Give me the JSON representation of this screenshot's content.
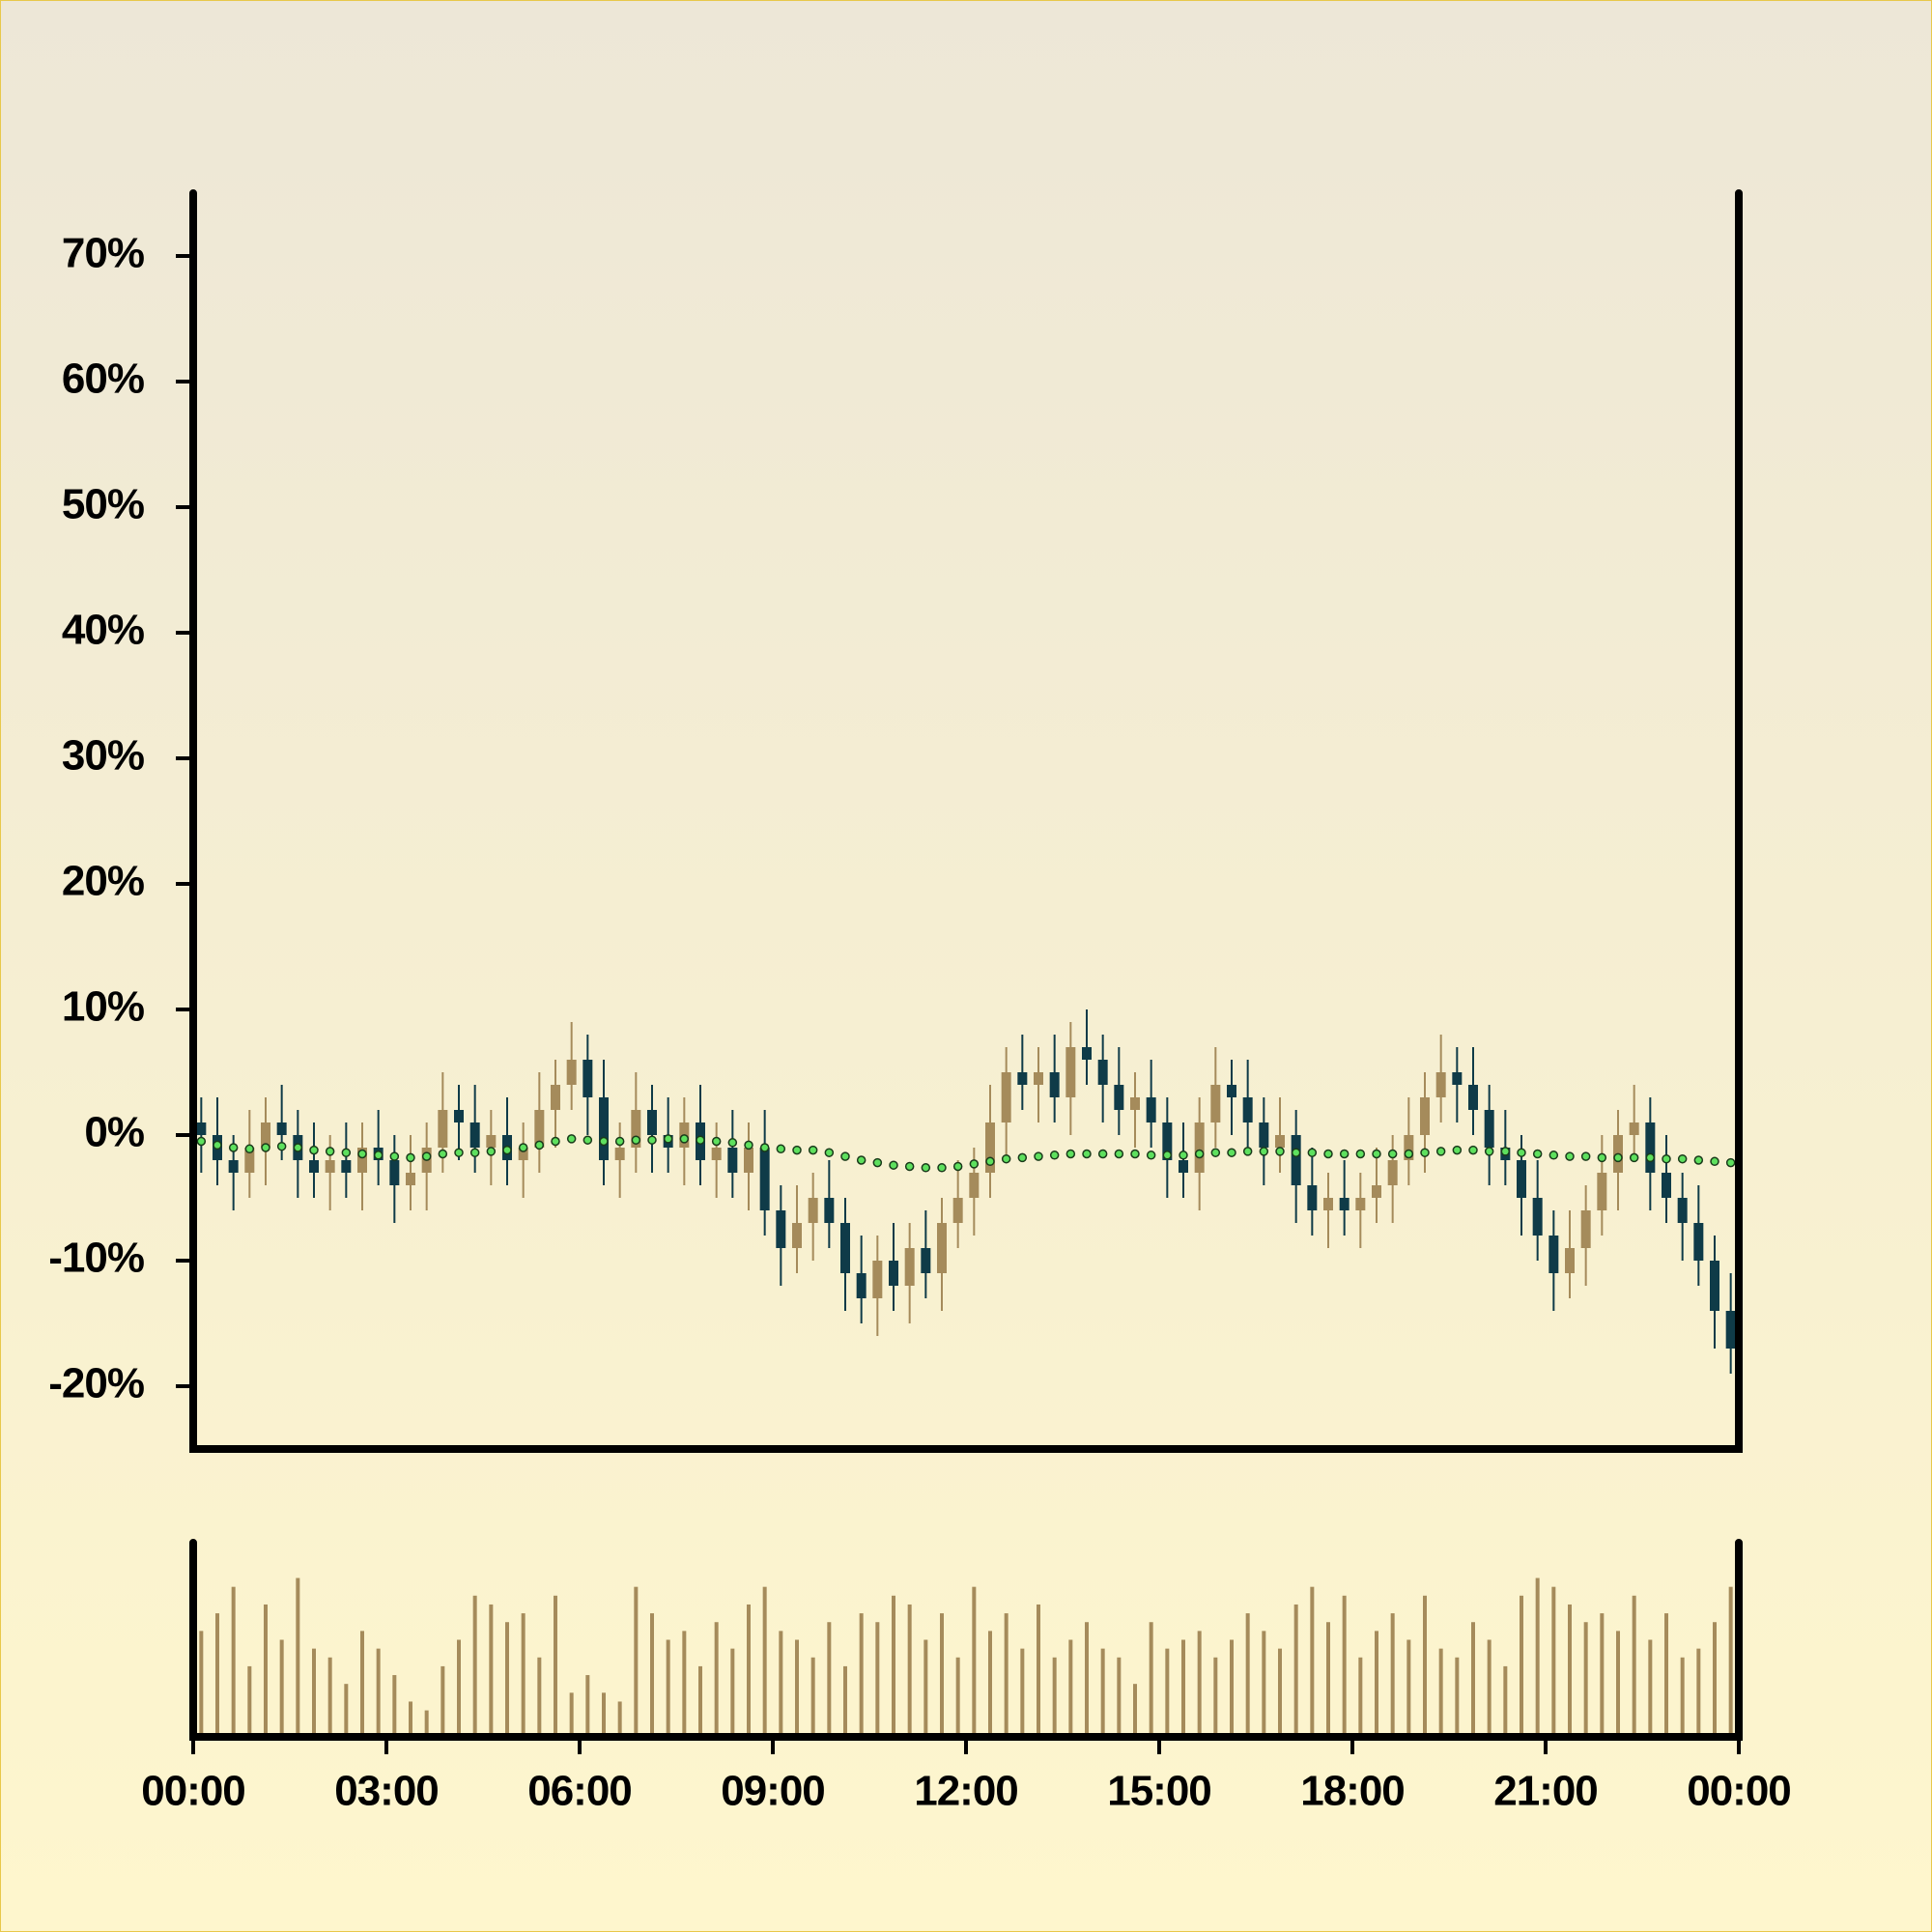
{
  "chart_data": {
    "type": "candlestick",
    "xlim": [
      0,
      1440
    ],
    "xticks": [
      {
        "value": 0,
        "label": "00:00"
      },
      {
        "value": 180,
        "label": "03:00"
      },
      {
        "value": 360,
        "label": "06:00"
      },
      {
        "value": 540,
        "label": "09:00"
      },
      {
        "value": 720,
        "label": "12:00"
      },
      {
        "value": 900,
        "label": "15:00"
      },
      {
        "value": 1080,
        "label": "18:00"
      },
      {
        "value": 1260,
        "label": "21:00"
      },
      {
        "value": 1440,
        "label": "00:00"
      }
    ],
    "ylim": [
      -25,
      75
    ],
    "yticks": [
      {
        "value": -20,
        "label": "-20%"
      },
      {
        "value": -10,
        "label": "-10%"
      },
      {
        "value": 0,
        "label": "0%"
      },
      {
        "value": 10,
        "label": "10%"
      },
      {
        "value": 20,
        "label": "20%"
      },
      {
        "value": 30,
        "label": "30%"
      },
      {
        "value": 40,
        "label": "40%"
      },
      {
        "value": 50,
        "label": "50%"
      },
      {
        "value": 60,
        "label": "60%"
      },
      {
        "value": 70,
        "label": "70%"
      }
    ],
    "up_color": "#a58b5b",
    "down_color": "#0f3b48",
    "x": [
      0,
      15,
      30,
      45,
      60,
      75,
      90,
      105,
      120,
      135,
      150,
      165,
      180,
      195,
      210,
      225,
      240,
      255,
      270,
      285,
      300,
      315,
      330,
      345,
      360,
      375,
      390,
      405,
      420,
      435,
      450,
      465,
      480,
      495,
      510,
      525,
      540,
      555,
      570,
      585,
      600,
      615,
      630,
      645,
      660,
      675,
      690,
      705,
      720,
      735,
      750,
      765,
      780,
      795,
      810,
      825,
      840,
      855,
      870,
      885,
      900,
      915,
      930,
      945,
      960,
      975,
      990,
      1005,
      1020,
      1035,
      1050,
      1065,
      1080,
      1095,
      1110,
      1125,
      1140,
      1155,
      1170,
      1185,
      1200,
      1215,
      1230,
      1245,
      1260,
      1275,
      1290,
      1305,
      1320,
      1335,
      1350,
      1365,
      1380,
      1395,
      1410,
      1425
    ],
    "open": [
      1,
      0,
      -2,
      -3,
      -1,
      1,
      0,
      -2,
      -3,
      -2,
      -3,
      -1,
      -2,
      -4,
      -3,
      -1,
      2,
      1,
      -1,
      0,
      -2,
      -1,
      2,
      4,
      6,
      3,
      -2,
      -1,
      2,
      0,
      -1,
      1,
      -2,
      -1,
      -3,
      -1,
      -6,
      -9,
      -7,
      -5,
      -7,
      -11,
      -13,
      -10,
      -12,
      -9,
      -11,
      -7,
      -5,
      -3,
      1,
      5,
      4,
      5,
      3,
      7,
      6,
      4,
      2,
      3,
      1,
      -2,
      -3,
      1,
      4,
      3,
      1,
      -1,
      0,
      -4,
      -6,
      -5,
      -6,
      -5,
      -4,
      -2,
      0,
      3,
      5,
      4,
      2,
      -1,
      -2,
      -5,
      -8,
      -11,
      -9,
      -6,
      -3,
      0,
      1,
      -3,
      -5,
      -7,
      -10,
      -14
    ],
    "high": [
      3,
      3,
      0,
      2,
      3,
      4,
      2,
      1,
      0,
      1,
      1,
      2,
      0,
      0,
      1,
      5,
      4,
      4,
      2,
      3,
      1,
      5,
      6,
      9,
      8,
      6,
      1,
      5,
      4,
      3,
      3,
      4,
      1,
      2,
      1,
      2,
      -4,
      -4,
      -3,
      -2,
      -5,
      -8,
      -8,
      -7,
      -7,
      -6,
      -5,
      -2,
      -1,
      4,
      7,
      8,
      7,
      8,
      9,
      10,
      8,
      7,
      5,
      6,
      3,
      1,
      3,
      7,
      6,
      6,
      3,
      3,
      2,
      -1,
      -3,
      -2,
      -3,
      -1,
      0,
      3,
      5,
      8,
      7,
      7,
      4,
      2,
      0,
      -2,
      -6,
      -6,
      -4,
      0,
      2,
      4,
      3,
      0,
      -3,
      -4,
      -8,
      -11
    ],
    "low": [
      -3,
      -4,
      -6,
      -5,
      -4,
      -2,
      -5,
      -5,
      -6,
      -5,
      -6,
      -4,
      -7,
      -6,
      -6,
      -3,
      -2,
      -3,
      -4,
      -4,
      -5,
      -3,
      -1,
      2,
      0,
      -4,
      -5,
      -3,
      -3,
      -3,
      -4,
      -4,
      -5,
      -5,
      -6,
      -8,
      -12,
      -11,
      -10,
      -9,
      -14,
      -15,
      -16,
      -14,
      -15,
      -13,
      -14,
      -9,
      -8,
      -5,
      -2,
      2,
      1,
      1,
      0,
      4,
      1,
      0,
      -1,
      -1,
      -5,
      -5,
      -6,
      -1,
      0,
      -1,
      -4,
      -3,
      -7,
      -8,
      -9,
      -8,
      -9,
      -7,
      -7,
      -4,
      -3,
      1,
      1,
      0,
      -4,
      -4,
      -8,
      -10,
      -14,
      -13,
      -12,
      -8,
      -6,
      -2,
      -6,
      -7,
      -10,
      -12,
      -17,
      -19
    ],
    "close": [
      0,
      -2,
      -3,
      -1,
      1,
      0,
      -2,
      -3,
      -2,
      -3,
      -1,
      -2,
      -4,
      -3,
      -1,
      2,
      1,
      -1,
      0,
      -2,
      -1,
      2,
      4,
      6,
      3,
      -2,
      -1,
      2,
      0,
      -1,
      1,
      -2,
      -1,
      -3,
      -1,
      -6,
      -9,
      -7,
      -5,
      -7,
      -11,
      -13,
      -10,
      -12,
      -9,
      -11,
      -7,
      -5,
      -3,
      1,
      5,
      4,
      5,
      3,
      7,
      6,
      4,
      2,
      3,
      1,
      -2,
      -3,
      1,
      4,
      3,
      1,
      -1,
      0,
      -4,
      -6,
      -5,
      -6,
      -5,
      -4,
      -2,
      0,
      3,
      5,
      4,
      2,
      -1,
      -2,
      -5,
      -8,
      -11,
      -9,
      -6,
      -3,
      0,
      1,
      -3,
      -5,
      -7,
      -10,
      -14,
      -17
    ],
    "ma": {
      "color": "#5ee05e",
      "values": [
        -0.5,
        -0.8,
        -1,
        -1.1,
        -1,
        -0.9,
        -1,
        -1.2,
        -1.3,
        -1.4,
        -1.5,
        -1.6,
        -1.7,
        -1.8,
        -1.7,
        -1.5,
        -1.4,
        -1.4,
        -1.3,
        -1.2,
        -1,
        -0.8,
        -0.5,
        -0.3,
        -0.4,
        -0.5,
        -0.5,
        -0.4,
        -0.4,
        -0.3,
        -0.3,
        -0.4,
        -0.5,
        -0.6,
        -0.8,
        -1,
        -1.1,
        -1.2,
        -1.2,
        -1.4,
        -1.7,
        -2,
        -2.2,
        -2.4,
        -2.5,
        -2.6,
        -2.6,
        -2.5,
        -2.3,
        -2.1,
        -1.9,
        -1.8,
        -1.7,
        -1.6,
        -1.5,
        -1.5,
        -1.5,
        -1.5,
        -1.5,
        -1.6,
        -1.6,
        -1.6,
        -1.5,
        -1.4,
        -1.4,
        -1.3,
        -1.3,
        -1.3,
        -1.4,
        -1.4,
        -1.5,
        -1.5,
        -1.5,
        -1.5,
        -1.5,
        -1.5,
        -1.4,
        -1.3,
        -1.2,
        -1.2,
        -1.3,
        -1.3,
        -1.4,
        -1.5,
        -1.6,
        -1.7,
        -1.7,
        -1.8,
        -1.8,
        -1.8,
        -1.8,
        -1.9,
        -1.9,
        -2,
        -2.1,
        -2.2
      ]
    },
    "volume": {
      "color": "#a58b5b",
      "ylim": [
        0,
        110
      ],
      "values": [
        60,
        70,
        85,
        40,
        75,
        55,
        90,
        50,
        45,
        30,
        60,
        50,
        35,
        20,
        15,
        40,
        55,
        80,
        75,
        65,
        70,
        45,
        80,
        25,
        35,
        25,
        20,
        85,
        70,
        55,
        60,
        40,
        65,
        50,
        75,
        85,
        60,
        55,
        45,
        65,
        40,
        70,
        65,
        80,
        75,
        55,
        70,
        45,
        85,
        60,
        70,
        50,
        75,
        45,
        55,
        65,
        50,
        45,
        30,
        65,
        50,
        55,
        60,
        45,
        55,
        70,
        60,
        50,
        75,
        85,
        65,
        80,
        45,
        60,
        70,
        55,
        80,
        50,
        45,
        65,
        55,
        40,
        80,
        90,
        85,
        75,
        65,
        70,
        60,
        80,
        55,
        70,
        45,
        50,
        65,
        85
      ]
    }
  }
}
